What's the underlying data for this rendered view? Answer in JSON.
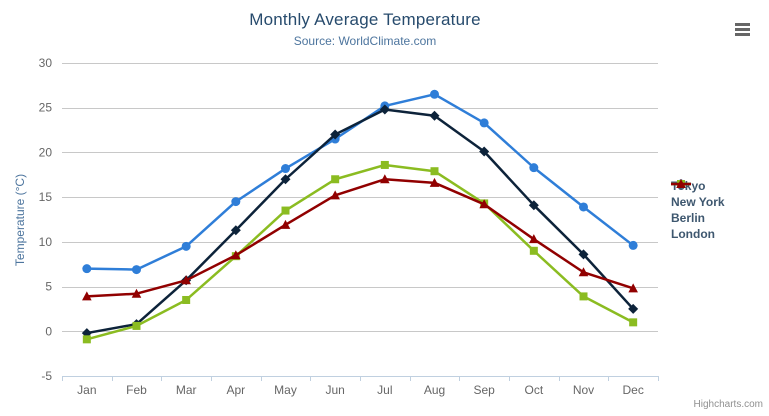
{
  "chart_data": {
    "type": "line",
    "title": "Monthly Average Temperature",
    "subtitle": "Source: WorldClimate.com",
    "categories": [
      "Jan",
      "Feb",
      "Mar",
      "Apr",
      "May",
      "Jun",
      "Jul",
      "Aug",
      "Sep",
      "Oct",
      "Nov",
      "Dec"
    ],
    "xlabel": "",
    "ylabel": "Temperature (°C)",
    "ylim": [
      -5,
      30
    ],
    "tick_interval": 5,
    "grid": true,
    "legend_position": "right",
    "series": [
      {
        "name": "Tokyo",
        "color": "#2f7ed8",
        "marker": "circle",
        "values": [
          7.0,
          6.9,
          9.5,
          14.5,
          18.2,
          21.5,
          25.2,
          26.5,
          23.3,
          18.3,
          13.9,
          9.6
        ]
      },
      {
        "name": "New York",
        "color": "#0d233a",
        "marker": "diamond",
        "values": [
          -0.2,
          0.8,
          5.7,
          11.3,
          17.0,
          22.0,
          24.8,
          24.1,
          20.1,
          14.1,
          8.6,
          2.5
        ]
      },
      {
        "name": "Berlin",
        "color": "#8bbc21",
        "marker": "square",
        "values": [
          -0.9,
          0.6,
          3.5,
          8.4,
          13.5,
          17.0,
          18.6,
          17.9,
          14.3,
          9.0,
          3.9,
          1.0
        ]
      },
      {
        "name": "London",
        "color": "#910000",
        "marker": "triangle",
        "values": [
          3.9,
          4.2,
          5.7,
          8.5,
          11.9,
          15.2,
          17.0,
          16.6,
          14.2,
          10.3,
          6.6,
          4.8
        ]
      }
    ]
  },
  "export_menu": {
    "icon": "hamburger-menu-icon"
  },
  "credits": {
    "label": "Highcharts.com"
  },
  "theme": {
    "title_color": "#274b6d",
    "subtitle_color": "#4d759e",
    "y_title_color": "#4d759e",
    "axis_label_color": "#666666",
    "grid_color": "#c8c8c8",
    "axis_line_color": "#c0d0e0",
    "legend_text_color": "#3e576f",
    "credits_color": "#909090"
  }
}
